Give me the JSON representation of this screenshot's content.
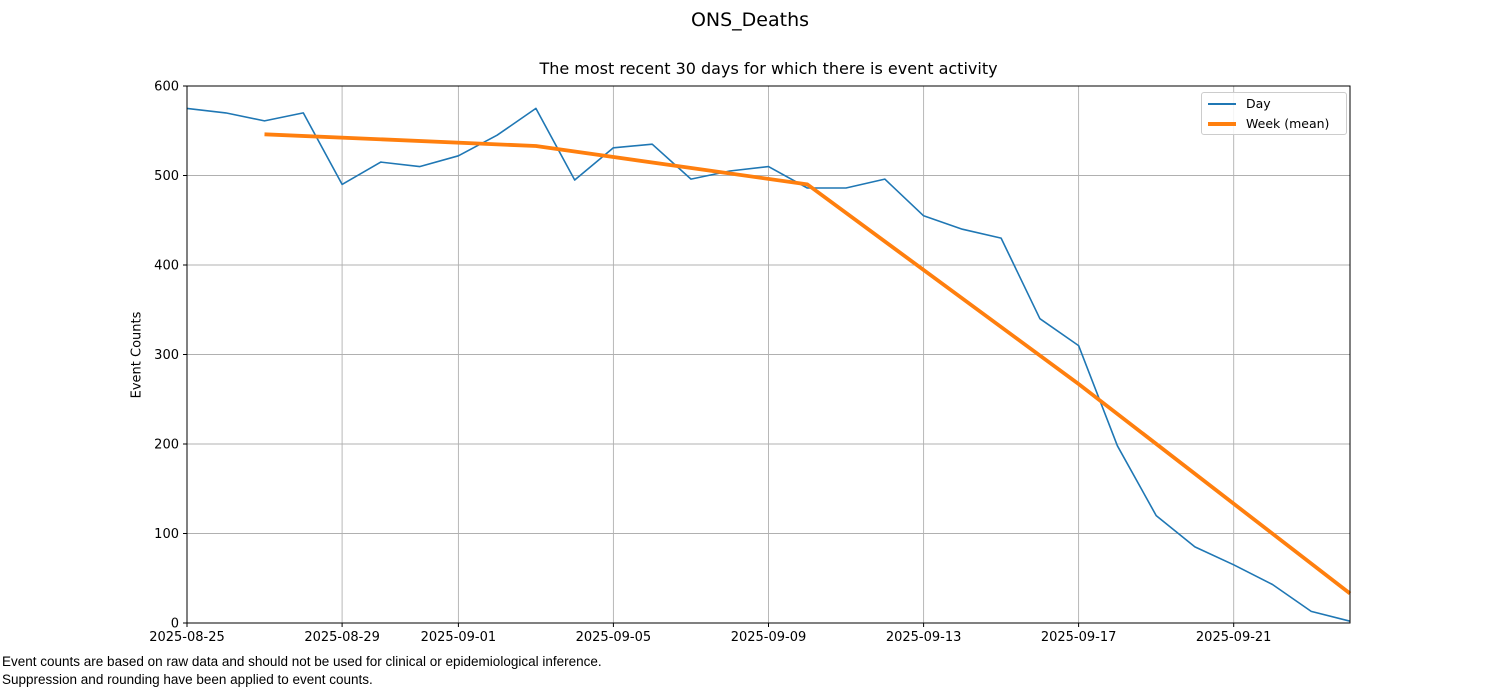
{
  "figure": {
    "title": "ONS_Deaths",
    "subtitle": "The most recent 30 days for which there is event activity",
    "footnotes": [
      "Event counts are based on raw data and should not be used for clinical or epidemiological inference.",
      "Suppression and rounding have been applied to event counts."
    ]
  },
  "chart_data": {
    "type": "line",
    "title": "ONS_Deaths",
    "subtitle": "The most recent 30 days for which there is event activity",
    "xlabel": "",
    "ylabel": "Event Counts",
    "ylim": [
      0,
      600
    ],
    "grid": true,
    "legend_position": "upper right",
    "x_start_date": "2025-08-25",
    "x_end_date": "2025-09-24",
    "x_unit": "day offset from 2025-08-25",
    "y_ticks": [
      0,
      100,
      200,
      300,
      400,
      500,
      600
    ],
    "x_ticks": [
      {
        "day": 0,
        "label": "2025-08-25"
      },
      {
        "day": 4,
        "label": "2025-08-29"
      },
      {
        "day": 7,
        "label": "2025-09-01"
      },
      {
        "day": 11,
        "label": "2025-09-05"
      },
      {
        "day": 15,
        "label": "2025-09-09"
      },
      {
        "day": 19,
        "label": "2025-09-13"
      },
      {
        "day": 23,
        "label": "2025-09-17"
      },
      {
        "day": 27,
        "label": "2025-09-21"
      }
    ],
    "series": [
      {
        "name": "Day",
        "color": "#1f77b4",
        "width": 1.6,
        "x_days": [
          0,
          1,
          2,
          3,
          4,
          5,
          6,
          7,
          8,
          9,
          10,
          11,
          12,
          13,
          14,
          15,
          16,
          17,
          18,
          19,
          20,
          21,
          22,
          23,
          24,
          25,
          26,
          27,
          28,
          29,
          30
        ],
        "values": [
          575,
          570,
          561,
          570,
          490,
          515,
          510,
          522,
          545,
          575,
          495,
          531,
          535,
          496,
          505,
          510,
          486,
          486,
          496,
          455,
          440,
          430,
          340,
          310,
          198,
          120,
          85,
          65,
          43,
          13,
          2
        ]
      },
      {
        "name": "Week (mean)",
        "color": "#ff7f0e",
        "width": 3.8,
        "x_days": [
          2,
          9,
          16,
          23,
          30
        ],
        "values": [
          546,
          533,
          490,
          267,
          33
        ]
      }
    ],
    "colors": {
      "grid": "#b0b0b0",
      "spine": "#000000",
      "text": "#000000",
      "background": "#ffffff"
    }
  }
}
